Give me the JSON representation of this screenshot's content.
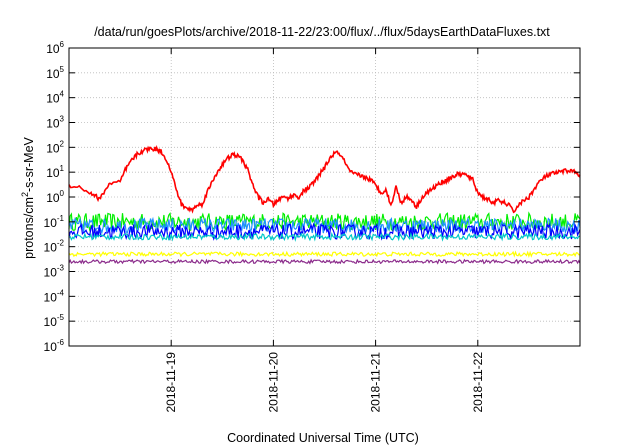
{
  "chart_data": {
    "type": "line",
    "title": "/data/run/goesPlots/archive/2018-11-22/23:00/flux/../flux/5daysEarthDataFluxes.txt",
    "xlabel": "Coordinated Universal Time (UTC)",
    "ylabel_parts": [
      "protons/cm",
      "2",
      "-s-sr-MeV"
    ],
    "y_scale": "log",
    "ylim": [
      1e-06,
      1000000.0
    ],
    "y_ticks": [
      {
        "base": "10",
        "exp": "-6"
      },
      {
        "base": "10",
        "exp": "-5"
      },
      {
        "base": "10",
        "exp": "-4"
      },
      {
        "base": "10",
        "exp": "-3"
      },
      {
        "base": "10",
        "exp": "-2"
      },
      {
        "base": "10",
        "exp": "-1"
      },
      {
        "base": "10",
        "exp": "0"
      },
      {
        "base": "10",
        "exp": "1"
      },
      {
        "base": "10",
        "exp": "2"
      },
      {
        "base": "10",
        "exp": "3"
      },
      {
        "base": "10",
        "exp": "4"
      },
      {
        "base": "10",
        "exp": "5"
      },
      {
        "base": "10",
        "exp": "6"
      }
    ],
    "xlim": [
      "2018-11-18 00:00",
      "2018-11-23 00:00"
    ],
    "x_ticks": [
      "2018-11-19",
      "2018-11-20",
      "2018-11-21",
      "2018-11-22"
    ],
    "grid": true,
    "series": [
      {
        "color": "#ff0000",
        "x_days": [
          0.0,
          0.1,
          0.2,
          0.25,
          0.3,
          0.35,
          0.4,
          0.5,
          0.55,
          0.6,
          0.65,
          0.7,
          0.75,
          0.8,
          0.85,
          0.9,
          0.95,
          1.0,
          1.05,
          1.1,
          1.15,
          1.2,
          1.25,
          1.3,
          1.35,
          1.4,
          1.45,
          1.5,
          1.55,
          1.6,
          1.65,
          1.7,
          1.75,
          1.8,
          1.85,
          1.9,
          1.95,
          2.0,
          2.05,
          2.1,
          2.15,
          2.2,
          2.25,
          2.3,
          2.35,
          2.4,
          2.45,
          2.5,
          2.55,
          2.6,
          2.65,
          2.7,
          2.75,
          2.8,
          2.85,
          2.9,
          2.95,
          3.0,
          3.05,
          3.1,
          3.15,
          3.2,
          3.25,
          3.3,
          3.35,
          3.4,
          3.45,
          3.5,
          3.55,
          3.6,
          3.65,
          3.7,
          3.75,
          3.8,
          3.85,
          3.9,
          3.95,
          4.0,
          4.05,
          4.1,
          4.15,
          4.2,
          4.25,
          4.3,
          4.35,
          4.4,
          4.45,
          4.5,
          4.55,
          4.6,
          4.65,
          4.7,
          4.75,
          4.8,
          4.85,
          4.9,
          4.95,
          5.0
        ],
        "y": [
          3.0,
          2.5,
          1.5,
          1.2,
          0.8,
          1.8,
          3.5,
          4.0,
          12,
          25,
          45,
          65,
          80,
          90,
          85,
          70,
          35,
          10,
          2.0,
          0.5,
          0.35,
          0.3,
          0.45,
          0.5,
          1.5,
          4.0,
          10,
          20,
          35,
          50,
          45,
          30,
          12,
          3.0,
          1.0,
          0.6,
          0.8,
          0.5,
          0.8,
          1.0,
          0.9,
          1.2,
          1.0,
          1.8,
          2.5,
          4.0,
          8.0,
          15,
          35,
          60,
          55,
          25,
          10,
          8.0,
          7.5,
          6.0,
          5.0,
          3.0,
          1.5,
          2.0,
          0.45,
          2.5,
          0.6,
          1.0,
          0.8,
          0.4,
          0.9,
          1.5,
          2.0,
          3.0,
          4.0,
          5.0,
          6.5,
          8.0,
          8.5,
          7.0,
          5.0,
          1.5,
          1.0,
          0.8,
          0.6,
          0.7,
          0.6,
          0.5,
          0.25,
          0.5,
          0.7,
          1.0,
          2.0,
          4.0,
          6.0,
          8.0,
          9.0,
          10,
          11,
          12,
          10,
          8.0
        ]
      },
      {
        "color": "#00ee00",
        "level": 0.1,
        "spread": 0.35
      },
      {
        "color": "#1e90ff",
        "level": 0.07,
        "spread": 0.3
      },
      {
        "color": "#0000ff",
        "level": 0.04,
        "spread": 0.3
      },
      {
        "color": "#00c8c8",
        "level": 0.025,
        "spread": 0.12
      },
      {
        "color": "#ffff00",
        "level": 0.005,
        "spread": 0.08
      },
      {
        "color": "#8b2b8b",
        "level": 0.0025,
        "spread": 0.07
      }
    ]
  }
}
